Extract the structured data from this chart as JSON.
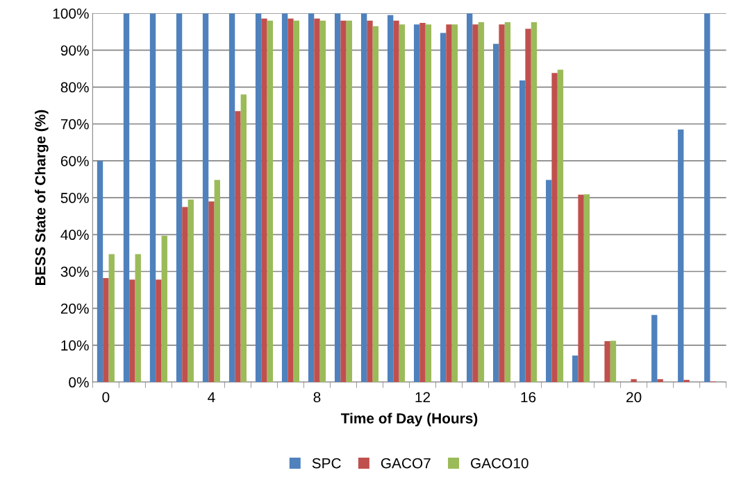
{
  "chart_data": {
    "type": "bar",
    "xlabel": "Time of Day (Hours)",
    "ylabel": "BESS State of Charge (%)",
    "categories": [
      "0",
      null,
      null,
      null,
      "4",
      null,
      null,
      null,
      "8",
      null,
      null,
      null,
      "12",
      null,
      null,
      null,
      "16",
      null,
      null,
      null,
      "20",
      null,
      null,
      null
    ],
    "series": [
      {
        "name": "SPC",
        "color": "#4f81bd",
        "values": [
          60,
          100,
          100,
          100,
          100,
          100,
          100,
          100,
          100,
          100,
          100,
          99.5,
          97,
          94.7,
          100,
          91.7,
          81.8,
          54.8,
          7.2,
          0,
          0,
          18.2,
          68.5,
          100
        ]
      },
      {
        "name": "GACO7",
        "color": "#c0504d",
        "values": [
          28.2,
          27.8,
          27.8,
          47.5,
          49,
          73.5,
          98.6,
          98.6,
          98.6,
          98,
          98,
          98,
          97.4,
          97,
          97,
          97,
          95.8,
          83.8,
          50.8,
          11.1,
          0.8,
          0.8,
          0.6,
          0.2
        ]
      },
      {
        "name": "GACO10",
        "color": "#9bbb59",
        "values": [
          34.7,
          34.7,
          39.7,
          49.5,
          54.8,
          78,
          98,
          98,
          98,
          98,
          96.5,
          97,
          97,
          97,
          97.6,
          97.6,
          97.6,
          84.7,
          50.9,
          11.2,
          0,
          0,
          0,
          0
        ]
      }
    ],
    "ylim": [
      0,
      100
    ],
    "yticks": [
      {
        "value": 0,
        "label": "0%"
      },
      {
        "value": 10,
        "label": "10%"
      },
      {
        "value": 20,
        "label": "20%"
      },
      {
        "value": 30,
        "label": "30%"
      },
      {
        "value": 40,
        "label": "40%"
      },
      {
        "value": 50,
        "label": "50%"
      },
      {
        "value": 60,
        "label": "60%"
      },
      {
        "value": 70,
        "label": "70%"
      },
      {
        "value": 80,
        "label": "80%"
      },
      {
        "value": 90,
        "label": "90%"
      },
      {
        "value": 100,
        "label": "100%"
      }
    ],
    "grid": "y",
    "legend": "bottom"
  }
}
